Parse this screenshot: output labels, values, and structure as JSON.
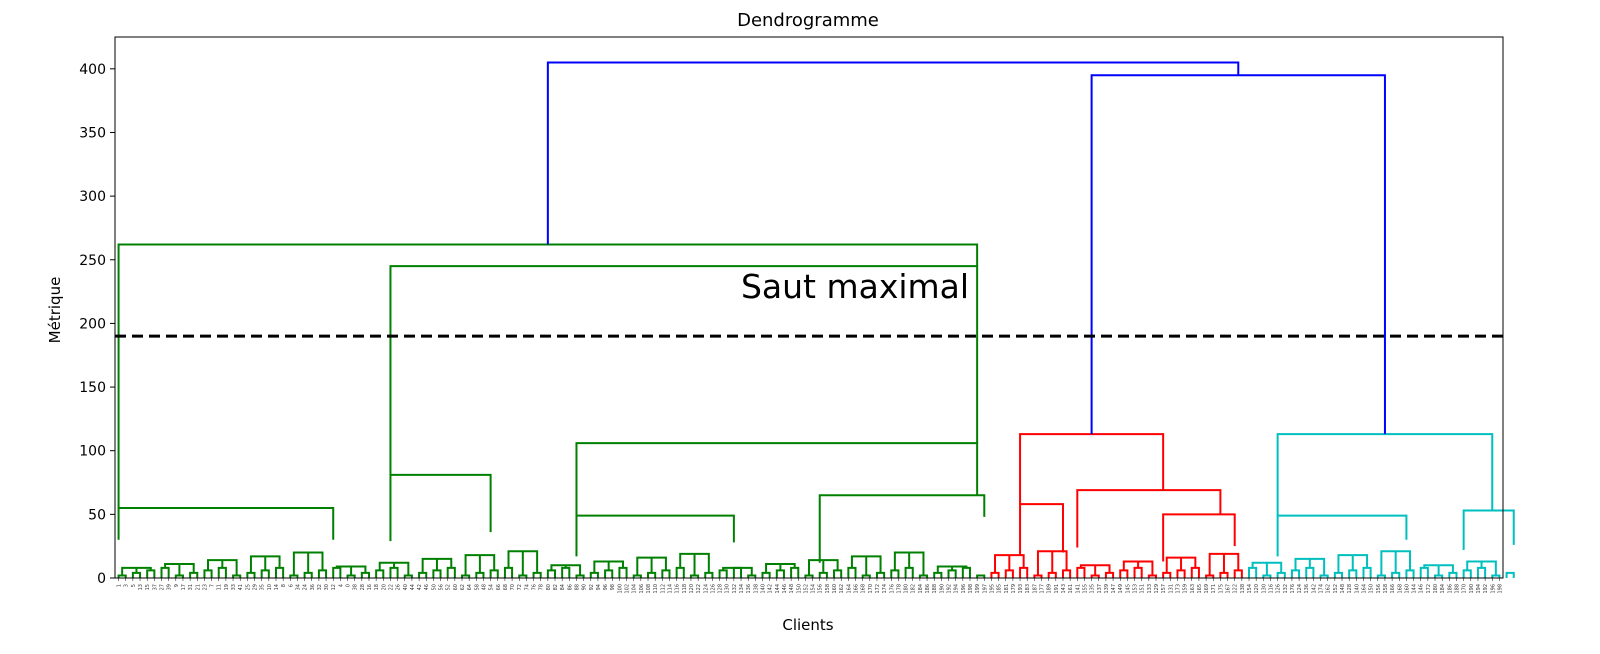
{
  "chart_data": {
    "type": "dendrogram",
    "title": "Dendrogramme",
    "xlabel": "Clients",
    "ylabel": "Métrique",
    "ylim": [
      0,
      425
    ],
    "yticks": [
      0,
      50,
      100,
      150,
      200,
      250,
      300,
      350,
      400
    ],
    "threshold": 190,
    "annotation": "Saut maximal",
    "colors": {
      "green": "#008000",
      "red": "#ff0000",
      "cyan": "#00bfbf",
      "blue": "#0000ff",
      "threshold": "#000000"
    },
    "leaf_labels": [
      "1",
      "3",
      "5",
      "13",
      "15",
      "37",
      "27",
      "39",
      "9",
      "17",
      "31",
      "21",
      "23",
      "7",
      "11",
      "19",
      "33",
      "41",
      "25",
      "29",
      "35",
      "10",
      "14",
      "8",
      "6",
      "34",
      "24",
      "36",
      "32",
      "30",
      "12",
      "4",
      "0",
      "38",
      "28",
      "16",
      "18",
      "20",
      "22",
      "26",
      "40",
      "44",
      "42",
      "46",
      "50",
      "56",
      "52",
      "60",
      "62",
      "64",
      "58",
      "48",
      "54",
      "66",
      "68",
      "70",
      "72",
      "74",
      "76",
      "78",
      "80",
      "82",
      "84",
      "86",
      "88",
      "90",
      "92",
      "94",
      "96",
      "98",
      "100",
      "102",
      "104",
      "106",
      "108",
      "110",
      "112",
      "114",
      "116",
      "118",
      "120",
      "122",
      "124",
      "126",
      "128",
      "130",
      "132",
      "134",
      "136",
      "138",
      "140",
      "142",
      "144",
      "146",
      "148",
      "150",
      "152",
      "154",
      "156",
      "158",
      "160",
      "162",
      "164",
      "166",
      "168",
      "170",
      "172",
      "174",
      "176",
      "178",
      "180",
      "182",
      "184",
      "186",
      "188",
      "190",
      "192",
      "194",
      "196",
      "198",
      "199",
      "197",
      "195",
      "185",
      "181",
      "179",
      "193",
      "183",
      "187",
      "177",
      "189",
      "191",
      "143",
      "161",
      "141",
      "155",
      "135",
      "137",
      "139",
      "147",
      "149",
      "145",
      "153",
      "151",
      "133",
      "129",
      "157",
      "131",
      "173",
      "159",
      "163",
      "165",
      "169",
      "171",
      "175",
      "167",
      "122",
      "138",
      "154",
      "120",
      "130",
      "116",
      "126",
      "132",
      "176",
      "124",
      "136",
      "142",
      "174",
      "162",
      "152",
      "148",
      "128",
      "140",
      "164",
      "150",
      "156",
      "158",
      "166",
      "168",
      "160",
      "144",
      "146",
      "172",
      "180",
      "184",
      "186",
      "188",
      "170",
      "190",
      "194",
      "192",
      "196",
      "198"
    ],
    "clusters": [
      {
        "name": "cluster-green",
        "color": "green",
        "leaf_start": 0,
        "leaf_count": 122,
        "links": [
          {
            "x1": 0,
            "x2": 120,
            "y": 262,
            "y1": 55,
            "y2": 245
          },
          {
            "x1": 0,
            "x2": 30,
            "y": 55,
            "y1": 30,
            "y2": 30
          },
          {
            "x1": 38,
            "x2": 120,
            "y": 245,
            "y1": 81,
            "y2": 106
          },
          {
            "x1": 38,
            "x2": 52,
            "y": 81,
            "y1": 29,
            "y2": 36
          },
          {
            "x1": 64,
            "x2": 120,
            "y": 106,
            "y1": 49,
            "y2": 65
          },
          {
            "x1": 64,
            "x2": 86,
            "y": 49,
            "y1": 17,
            "y2": 28
          },
          {
            "x1": 98,
            "x2": 122,
            "y": 65,
            "y1": 12,
            "y2": 48
          }
        ]
      },
      {
        "name": "cluster-red",
        "color": "red",
        "leaf_start": 122,
        "leaf_count": 36,
        "links": [
          {
            "x1": 4,
            "x2": 24,
            "y": 113,
            "y1": 58,
            "y2": 69
          },
          {
            "x1": 4,
            "x2": 10,
            "y": 58,
            "y1": 18,
            "y2": 20
          },
          {
            "x1": 12,
            "x2": 32,
            "y": 69,
            "y1": 24,
            "y2": 50
          },
          {
            "x1": 24,
            "x2": 34,
            "y": 50,
            "y1": 13,
            "y2": 25
          }
        ]
      },
      {
        "name": "cluster-cyan",
        "color": "cyan",
        "leaf_start": 158,
        "leaf_count": 38,
        "links": [
          {
            "x1": 4,
            "x2": 34,
            "y": 113,
            "y1": 49,
            "y2": 53
          },
          {
            "x1": 4,
            "x2": 22,
            "y": 49,
            "y1": 17,
            "y2": 30
          },
          {
            "x1": 30,
            "x2": 37,
            "y": 53,
            "y1": 22,
            "y2": 26
          }
        ]
      }
    ],
    "top_links": [
      {
        "name": "link-green-vs-rest",
        "height": 405
      },
      {
        "name": "link-red-vs-cyan",
        "height": 395
      }
    ]
  }
}
